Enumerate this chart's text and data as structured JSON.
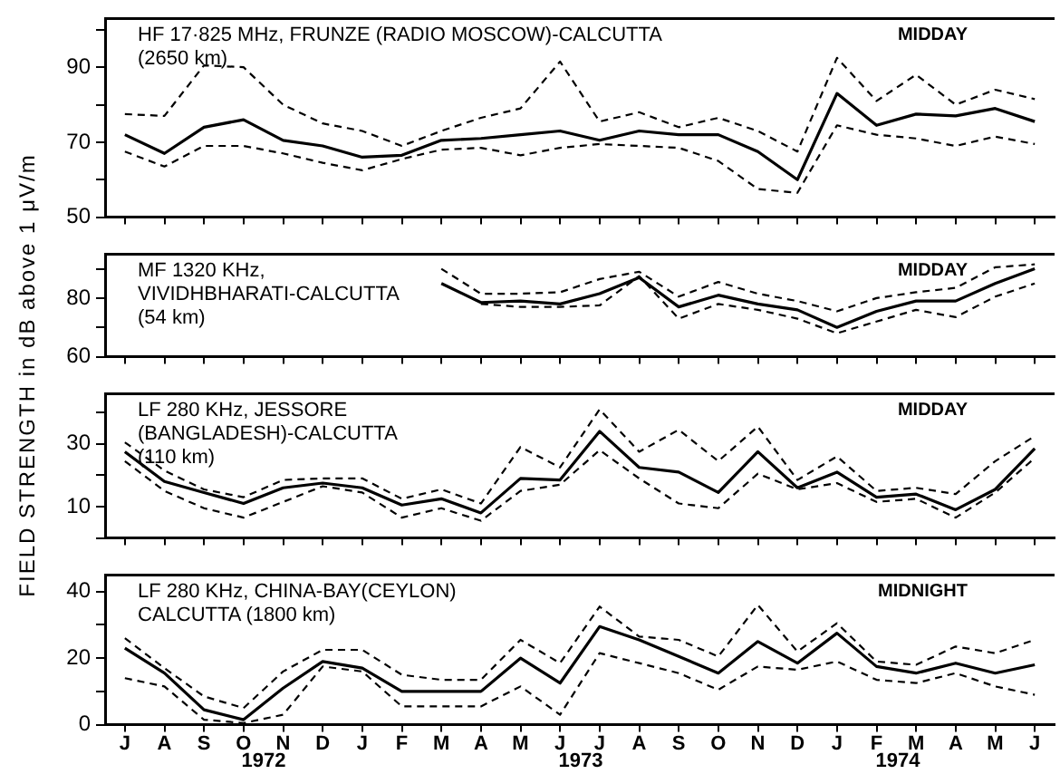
{
  "chart_data": [
    {
      "type": "line",
      "title": "HF 17·825 MHz, FRUNZE (RADIO MOSCOW)-CALCUTTA\n(2650 km)",
      "subtitle": "MIDDAY",
      "ylabel": "FIELD STRENGTH in dB above 1 μV/m",
      "categories": [
        null,
        null,
        null,
        null,
        null,
        null,
        null,
        null,
        null,
        null,
        null,
        null,
        null,
        null,
        null,
        null,
        null,
        null,
        null,
        null,
        null,
        null,
        null,
        null
      ],
      "series": [
        {
          "color": "#000000",
          "line_style": "solid",
          "values": [
            72,
            67,
            74,
            76,
            70.5,
            69,
            66,
            66.5,
            70.5,
            71,
            72,
            73,
            70.5,
            73,
            72,
            72,
            67.5,
            60,
            83,
            74.5,
            77.5,
            77,
            79,
            75.5
          ]
        },
        {
          "color": "#000000",
          "line_style": "dashed",
          "values": [
            77.5,
            77,
            90.5,
            90,
            80,
            75,
            73,
            69,
            73,
            76.5,
            79,
            91.5,
            75.5,
            78,
            74,
            76.5,
            73,
            67.5,
            92.5,
            81,
            88,
            80,
            84,
            81.5
          ]
        },
        {
          "color": "#000000",
          "line_style": "dashed",
          "values": [
            67.5,
            63.5,
            69,
            69,
            67,
            64.5,
            62.5,
            65.5,
            68,
            68.5,
            66.5,
            68.5,
            69.5,
            69,
            68.5,
            65,
            57.5,
            56.5,
            74.5,
            72,
            71,
            69,
            71.5,
            69.5
          ]
        }
      ],
      "ylim": [
        50,
        103
      ],
      "yticks": [
        50,
        {
          "value": 60,
          "label": null
        },
        70,
        {
          "value": 80,
          "label": null
        },
        90,
        {
          "value": 100,
          "label": null
        }
      ],
      "tick_labels": "y"
    },
    {
      "type": "line",
      "title": "MF 1320 KHz,\nVIVIDHBHARATI-CALCUTTA\n(54 km)",
      "subtitle": "MIDDAY",
      "categories": [
        null,
        null,
        null,
        null,
        null,
        null,
        null,
        null,
        null,
        null,
        null,
        null,
        null,
        null,
        null,
        null,
        null,
        null,
        null,
        null,
        null,
        null,
        null,
        null
      ],
      "series": [
        {
          "color": "#000000",
          "line_style": "solid",
          "values": [
            null,
            null,
            null,
            null,
            null,
            null,
            null,
            null,
            85,
            78.5,
            79,
            78,
            81.5,
            87,
            77,
            81,
            78,
            76,
            70,
            75.5,
            79,
            79,
            85,
            90
          ]
        },
        {
          "color": "#000000",
          "line_style": "dashed",
          "values": [
            null,
            null,
            null,
            null,
            null,
            null,
            null,
            null,
            90,
            81.5,
            81.5,
            82,
            86.5,
            89,
            80.5,
            85.5,
            81.5,
            79,
            75.5,
            80,
            82,
            83.5,
            90.5,
            91.5
          ]
        },
        {
          "color": "#000000",
          "line_style": "dashed",
          "values": [
            null,
            null,
            null,
            null,
            null,
            null,
            null,
            null,
            null,
            78,
            77,
            77,
            77.5,
            87.5,
            73,
            78,
            76,
            73,
            68,
            72,
            76,
            73.5,
            80.5,
            85
          ]
        }
      ],
      "ylim": [
        60,
        95
      ],
      "yticks": [
        60,
        {
          "value": 70,
          "label": null
        },
        80,
        {
          "value": 90,
          "label": null
        }
      ],
      "tick_labels": "y"
    },
    {
      "type": "line",
      "title": "LF 280 KHz, JESSORE\n(BANGLADESH)-CALCUTTA\n(110 km)",
      "subtitle": "MIDDAY",
      "categories": [
        null,
        null,
        null,
        null,
        null,
        null,
        null,
        null,
        null,
        null,
        null,
        null,
        null,
        null,
        null,
        null,
        null,
        null,
        null,
        null,
        null,
        null,
        null,
        null
      ],
      "series": [
        {
          "color": "#000000",
          "line_style": "solid",
          "values": [
            27.5,
            18,
            14.5,
            11,
            16,
            17.5,
            16,
            10.5,
            12.5,
            8,
            19,
            18.5,
            34,
            22.5,
            21,
            14.5,
            27.5,
            16,
            21,
            13,
            14,
            9,
            15.5,
            28.5
          ]
        },
        {
          "color": "#000000",
          "line_style": "dashed",
          "values": [
            30.5,
            21.5,
            15.5,
            13,
            18.5,
            19,
            19,
            12.5,
            15.5,
            11,
            29,
            22.5,
            41,
            27.5,
            34.5,
            24.5,
            35.5,
            18.5,
            26,
            15,
            16,
            14,
            24.5,
            32.5
          ]
        },
        {
          "color": "#000000",
          "line_style": "dashed",
          "values": [
            24.5,
            15,
            9.5,
            6.5,
            11.5,
            16.5,
            14.5,
            6.5,
            9.5,
            5.5,
            15,
            17,
            28,
            19,
            11,
            9.5,
            20.5,
            15.5,
            17.5,
            11.5,
            12.5,
            6.5,
            14.5,
            25.5
          ]
        }
      ],
      "ylim": [
        0,
        46
      ],
      "yticks": [
        {
          "value": 0,
          "label": null
        },
        10,
        {
          "value": 20,
          "label": null
        },
        30,
        {
          "value": 40,
          "label": null
        }
      ],
      "tick_labels": "y"
    },
    {
      "type": "line",
      "title": "LF 280 KHz, CHINA-BAY(CEYLON)\nCALCUTTA (1800 km)",
      "subtitle": "MIDNIGHT",
      "annotations": [
        "1972",
        "1973",
        "1974"
      ],
      "categories": [
        "J",
        "A",
        "S",
        "O",
        "N",
        "D",
        "J",
        "F",
        "M",
        "A",
        "M",
        "J",
        "J",
        "A",
        "S",
        "O",
        "N",
        "D",
        "J",
        "F",
        "M",
        "A",
        "M",
        "J"
      ],
      "series": [
        {
          "color": "#000000",
          "line_style": "solid",
          "values": [
            23,
            15.5,
            4.5,
            1.5,
            11,
            19,
            17,
            10,
            10,
            10,
            20,
            12.5,
            29.5,
            25.5,
            20.5,
            15.5,
            25,
            18.5,
            27.5,
            17.5,
            15.5,
            18.5,
            15.5,
            18
          ]
        },
        {
          "color": "#000000",
          "line_style": "dashed",
          "values": [
            26,
            17,
            8.5,
            5,
            16,
            22.5,
            22.5,
            15,
            13.5,
            13.5,
            25.5,
            18.5,
            35.5,
            26.5,
            25.5,
            20.5,
            36,
            22,
            30.5,
            19,
            18,
            23.5,
            21.5,
            25.5
          ]
        },
        {
          "color": "#000000",
          "line_style": "dashed",
          "values": [
            14,
            11.5,
            1.5,
            0.5,
            3,
            17.5,
            16,
            5.5,
            5.5,
            5.5,
            11.5,
            3,
            21.5,
            18.5,
            15.5,
            10.5,
            17.5,
            16.5,
            19,
            13.5,
            12.5,
            15.5,
            11.5,
            9
          ]
        }
      ],
      "ylim": [
        0,
        45
      ],
      "yticks": [
        0,
        {
          "value": 10,
          "label": null
        },
        20,
        {
          "value": 30,
          "label": null
        },
        40
      ]
    }
  ]
}
